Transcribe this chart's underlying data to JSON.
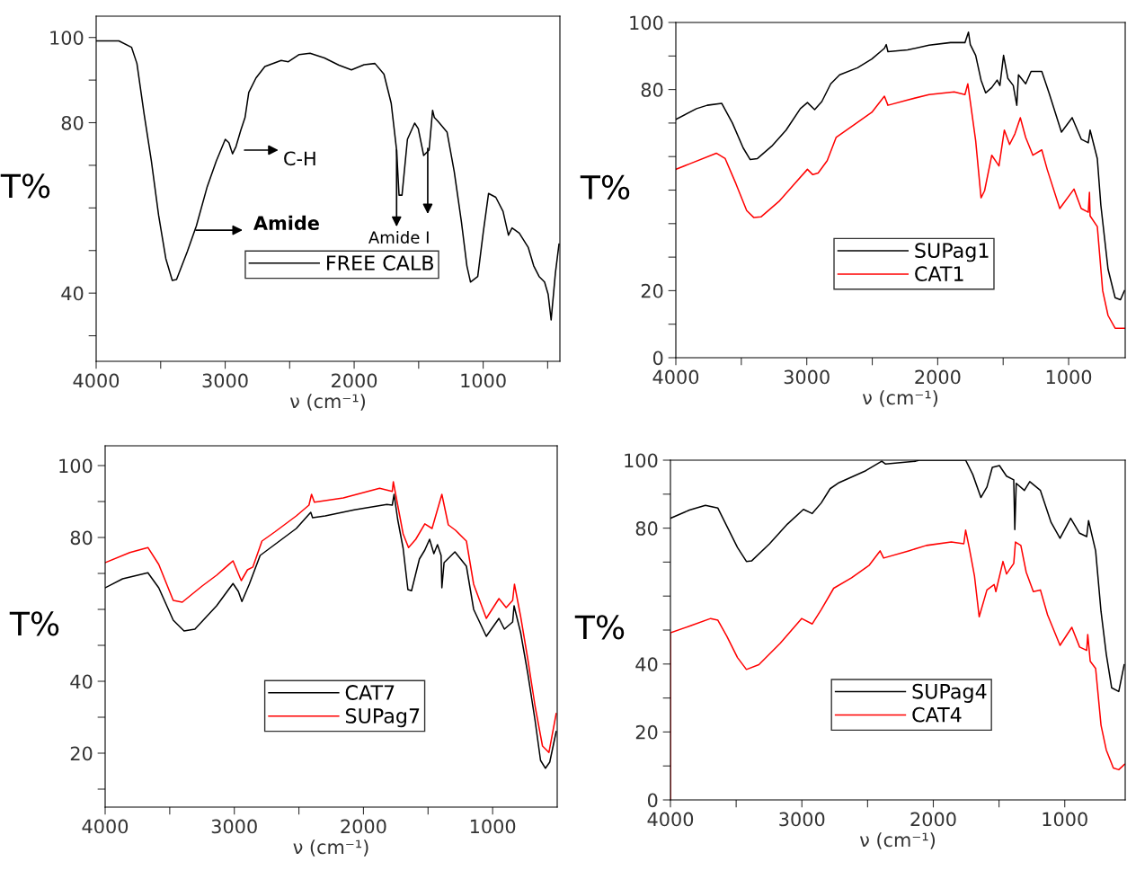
{
  "chart_data": [
    {
      "type": "line",
      "xlabel": "ν (cm⁻¹)",
      "ylabel": "T%",
      "xlim": [
        4000,
        405
      ],
      "ylim": [
        24,
        105
      ],
      "xticks": [
        4000,
        {
          "value": 3500,
          "label": null
        },
        3000,
        {
          "value": 2500,
          "label": null
        },
        2000,
        {
          "value": 1500,
          "label": null
        },
        1000,
        {
          "value": 500,
          "label": null
        }
      ],
      "yticks": [
        {
          "value": 30,
          "label": null
        },
        40,
        {
          "value": 50,
          "label": null
        },
        {
          "value": 60,
          "label": null
        },
        {
          "value": 70,
          "label": null
        },
        80,
        {
          "value": 90,
          "label": null
        },
        100
      ],
      "legend": "bottom",
      "grid": false,
      "annotations": [
        "C-H",
        "Amide",
        {
          "text": "Amide I",
          "x": 1671,
          "y": 73.6
        }
      ],
      "series": [
        {
          "name": "FREE CALB",
          "color": "#000000",
          "x": [
            4000,
            3824,
            3726,
            3684,
            3628,
            3572,
            3516,
            3460,
            3410,
            3377,
            3293,
            3223,
            3139,
            3069,
            2999,
            2971,
            2943,
            2916,
            2879,
            2846,
            2817,
            2761,
            2692,
            2566,
            2510,
            2426,
            2342,
            2230,
            2118,
            2021,
            1923,
            1839,
            1769,
            1713,
            1671,
            1652,
            1629,
            1587,
            1531,
            1503,
            1461,
            1419,
            1392,
            1378,
            1350,
            1280,
            1224,
            1168,
            1126,
            1098,
            1042,
            1000,
            958,
            902,
            846,
            804,
            776,
            720,
            650,
            608,
            566,
            524,
            496,
            473,
            440,
            412
          ],
          "values": [
            99.2,
            99.2,
            97.7,
            93.9,
            82,
            71,
            58.3,
            48.1,
            43,
            43.2,
            49.8,
            55.8,
            65,
            71,
            76.1,
            75.3,
            72.7,
            74.4,
            78.2,
            81.2,
            87.1,
            90.5,
            93.2,
            94.6,
            94.3,
            96,
            96.3,
            95.2,
            93.5,
            92.4,
            93.6,
            93.9,
            91.4,
            84.6,
            73.6,
            63,
            63,
            76.1,
            79.9,
            78.6,
            72.3,
            73.6,
            82.9,
            81.2,
            80.3,
            77.8,
            68.5,
            56.6,
            46.4,
            42.6,
            43.9,
            54.1,
            63.4,
            62.5,
            59.2,
            53.6,
            55.3,
            54.1,
            50.7,
            46.4,
            43.9,
            42.6,
            39.7,
            33.7,
            44.7,
            51.5
          ]
        }
      ]
    },
    {
      "type": "line",
      "xlabel": "ν (cm⁻¹)",
      "ylabel": "T%",
      "xlim": [
        4000,
        568
      ],
      "ylim": [
        0,
        100
      ],
      "xticks": [
        4000,
        {
          "value": 3500,
          "label": null
        },
        3000,
        {
          "value": 2500,
          "label": null
        },
        2000,
        {
          "value": 1500,
          "label": null
        },
        1000
      ],
      "yticks": [
        0,
        {
          "value": 10,
          "label": null
        },
        20,
        {
          "value": 30,
          "label": null
        },
        {
          "value": 40,
          "label": null
        },
        {
          "value": 50,
          "label": null
        },
        {
          "value": 60,
          "label": null
        },
        {
          "value": 70,
          "label": null
        },
        80,
        {
          "value": 90,
          "label": null
        },
        100
      ],
      "legend": "bottom",
      "grid": false,
      "series": [
        {
          "name": "SUPag1",
          "color": "#000000",
          "x": [
            4000,
            3842,
            3760,
            3650,
            3568,
            3486,
            3432,
            3377,
            3268,
            3158,
            3049,
            2995,
            2940,
            2885,
            2817,
            2749,
            2612,
            2503,
            2407,
            2393,
            2380,
            2230,
            2066,
            1902,
            1792,
            1765,
            1751,
            1710,
            1669,
            1634,
            1587,
            1546,
            1525,
            1497,
            1464,
            1423,
            1396,
            1383,
            1328,
            1287,
            1205,
            1150,
            1055,
            973,
            904,
            850,
            836,
            781,
            754,
            699,
            645,
            604,
            574
          ],
          "values": [
            71.1,
            74.3,
            75.3,
            75.9,
            70,
            62.6,
            59.1,
            59.4,
            63.1,
            67.9,
            74.3,
            76.1,
            74,
            76.4,
            81.7,
            84.4,
            86.5,
            89.1,
            92.3,
            93.4,
            91.3,
            91.8,
            93.2,
            94,
            94,
            97.1,
            93.4,
            90.2,
            82.8,
            79,
            80.6,
            82.8,
            81.2,
            90.2,
            83.3,
            81.2,
            75.3,
            84.4,
            81.7,
            85.4,
            85.4,
            79,
            67.3,
            71.6,
            65.2,
            64.1,
            67.9,
            59.4,
            45.5,
            26.4,
            17.9,
            17.3,
            20
          ]
        },
        {
          "name": "CAT1",
          "color": "#ff0000",
          "x": [
            4000,
            3896,
            3691,
            3623,
            3541,
            3459,
            3404,
            3350,
            3213,
            3104,
            2995,
            2954,
            2913,
            2844,
            2776,
            2639,
            2503,
            2407,
            2380,
            2230,
            2066,
            1874,
            1792,
            1770,
            1751,
            1710,
            1669,
            1642,
            1587,
            1532,
            1491,
            1451,
            1410,
            1369,
            1328,
            1273,
            1205,
            1164,
            1068,
            959,
            904,
            850,
            841,
            836,
            781,
            740,
            699,
            645,
            574
          ],
          "values": [
            56.2,
            57.8,
            61,
            59.4,
            51.9,
            43.9,
            41.8,
            42,
            46.6,
            51.4,
            56.2,
            54.6,
            55.1,
            58.8,
            65.7,
            69.5,
            73.2,
            78,
            75.3,
            76.9,
            78.5,
            79.3,
            78.5,
            81.7,
            76.4,
            64.7,
            47.7,
            49.8,
            60.4,
            57.2,
            67.9,
            63.6,
            66.8,
            71.6,
            65.7,
            60.4,
            62,
            56.2,
            44.5,
            50.3,
            44.5,
            43.4,
            49.3,
            42.3,
            39.1,
            20,
            12.6,
            8.8,
            8.8
          ]
        }
      ]
    },
    {
      "type": "line",
      "xlabel": "ν (cm⁻¹)",
      "ylabel": "T%",
      "xlim": [
        4000,
        500
      ],
      "ylim": [
        5,
        105.5
      ],
      "xticks": [
        4000,
        {
          "value": 3500,
          "label": null
        },
        3000,
        {
          "value": 2500,
          "label": null
        },
        2000,
        {
          "value": 1500,
          "label": null
        },
        1000
      ],
      "yticks": [
        {
          "value": 10,
          "label": null
        },
        20,
        {
          "value": 30,
          "label": null
        },
        40,
        {
          "value": 50,
          "label": null
        },
        {
          "value": 60,
          "label": null
        },
        {
          "value": 70,
          "label": null
        },
        80,
        {
          "value": 90,
          "label": null
        },
        100
      ],
      "legend": "bottom",
      "grid": false,
      "series": [
        {
          "name": "CAT7",
          "color": "#000000",
          "x": [
            4000,
            3865,
            3669,
            3585,
            3473,
            3389,
            3305,
            3137,
            3010,
            2969,
            2941,
            2884,
            2800,
            2688,
            2520,
            2408,
            2394,
            2296,
            2071,
            1819,
            1777,
            1763,
            1735,
            1693,
            1656,
            1628,
            1567,
            1525,
            1488,
            1455,
            1427,
            1399,
            1393,
            1376,
            1292,
            1203,
            1147,
            1049,
            951,
            909,
            845,
            834,
            783,
            727,
            671,
            629,
            591,
            558,
            508
          ],
          "values": [
            66,
            68.5,
            70.2,
            66,
            57,
            54,
            54.5,
            61,
            67.2,
            65,
            62.2,
            67,
            75,
            78,
            82.5,
            87,
            85.5,
            86,
            87.7,
            89.2,
            89,
            92,
            85,
            77,
            65.5,
            65.2,
            74,
            76.5,
            79.5,
            75.5,
            78,
            75,
            66,
            73,
            76,
            72,
            60,
            52.5,
            57.5,
            54.5,
            56.5,
            61,
            53.5,
            42,
            29,
            18,
            15.8,
            17.5,
            26
          ]
        },
        {
          "name": "SUPag7",
          "color": "#ff0000",
          "x": [
            4000,
            3809,
            3669,
            3585,
            3473,
            3403,
            3249,
            3137,
            3010,
            2946,
            2898,
            2856,
            2786,
            2688,
            2520,
            2422,
            2402,
            2380,
            2156,
            1875,
            1777,
            1769,
            1735,
            1693,
            1651,
            1595,
            1525,
            1469,
            1393,
            1343,
            1287,
            1203,
            1147,
            1049,
            951,
            895,
            845,
            831,
            783,
            727,
            671,
            614,
            564,
            508
          ],
          "values": [
            73,
            75.8,
            77.2,
            72.5,
            62.5,
            62,
            66.5,
            69.5,
            73.5,
            68,
            71,
            71.8,
            79,
            81.5,
            86,
            89,
            92,
            89.8,
            91,
            93.7,
            92.8,
            95.5,
            89,
            81,
            77.2,
            79.5,
            83.8,
            82.5,
            92,
            83.5,
            82,
            79,
            67,
            57.5,
            63,
            60.5,
            62.5,
            67,
            58,
            46,
            33,
            22,
            20.2,
            31
          ]
        }
      ]
    },
    {
      "type": "line",
      "xlabel": "ν (cm⁻¹)",
      "ylabel": "T%",
      "xlim": [
        4000,
        540
      ],
      "ylim": [
        0,
        100
      ],
      "xticks": [
        4000,
        {
          "value": 3500,
          "label": null
        },
        3000,
        {
          "value": 2500,
          "label": null
        },
        2000,
        {
          "value": 1500,
          "label": null
        },
        1000
      ],
      "yticks": [
        0,
        {
          "value": 10,
          "label": null
        },
        20,
        {
          "value": 30,
          "label": null
        },
        40,
        {
          "value": 50,
          "label": null
        },
        {
          "value": 60,
          "label": null
        },
        {
          "value": 70,
          "label": null
        },
        80,
        {
          "value": 90,
          "label": null
        },
        100
      ],
      "legend": "bottom",
      "grid": false,
      "series": [
        {
          "name": "SUPag4",
          "color": "#000000",
          "x": [
            4000,
            3856,
            3734,
            3639,
            3571,
            3490,
            3422,
            3381,
            3246,
            3110,
            2988,
            2921,
            2853,
            2785,
            2717,
            2514,
            2392,
            2365,
            2134,
            2107,
            1754,
            1700,
            1638,
            1592,
            1551,
            1497,
            1443,
            1388,
            1380,
            1369,
            1307,
            1266,
            1185,
            1104,
            1036,
            955,
            887,
            833,
            819,
            765,
            724,
            684,
            643,
            589,
            548
          ],
          "values": [
            82.9,
            85.3,
            86.7,
            85.9,
            80.6,
            74.3,
            70.2,
            70.4,
            75.4,
            81.2,
            85.5,
            84.3,
            87.4,
            91.6,
            93.4,
            96.9,
            99.7,
            98.9,
            99.7,
            100,
            100,
            95.8,
            89,
            92.1,
            97.9,
            98.4,
            95.3,
            94.2,
            79.6,
            93.2,
            91.1,
            93.7,
            91.1,
            81.7,
            77,
            82.9,
            78.5,
            77.5,
            82.2,
            73.3,
            55.5,
            42.9,
            33,
            31.9,
            39.8
          ]
        },
        {
          "name": "CAT4",
          "color": "#ff0000",
          "x": [
            4000,
            4000,
            3843,
            3694,
            3639,
            3571,
            3490,
            3422,
            3327,
            3165,
            3002,
            2921,
            2853,
            2758,
            2622,
            2487,
            2405,
            2378,
            2188,
            2053,
            1863,
            1768,
            1754,
            1727,
            1687,
            1651,
            1592,
            1537,
            1524,
            1470,
            1443,
            1388,
            1375,
            1334,
            1293,
            1239,
            1185,
            1131,
            1036,
            946,
            887,
            833,
            825,
            806,
            765,
            724,
            684,
            630,
            589,
            545
          ],
          "values": [
            0,
            49.2,
            51.3,
            53.4,
            52.9,
            48.2,
            41.9,
            38.4,
            39.8,
            46.1,
            53.4,
            51.8,
            56,
            62.3,
            65.4,
            69.1,
            73.3,
            71.2,
            73.3,
            74.9,
            75.9,
            75.4,
            79.4,
            74.3,
            66,
            53.9,
            61.8,
            63.4,
            61.3,
            70.2,
            66.5,
            69.6,
            75.9,
            74.9,
            67,
            61.3,
            61.8,
            54.5,
            45.5,
            50.8,
            45,
            44,
            48.7,
            40.8,
            38.7,
            22,
            14.7,
            9.4,
            8.9,
            10.5
          ]
        }
      ]
    }
  ]
}
